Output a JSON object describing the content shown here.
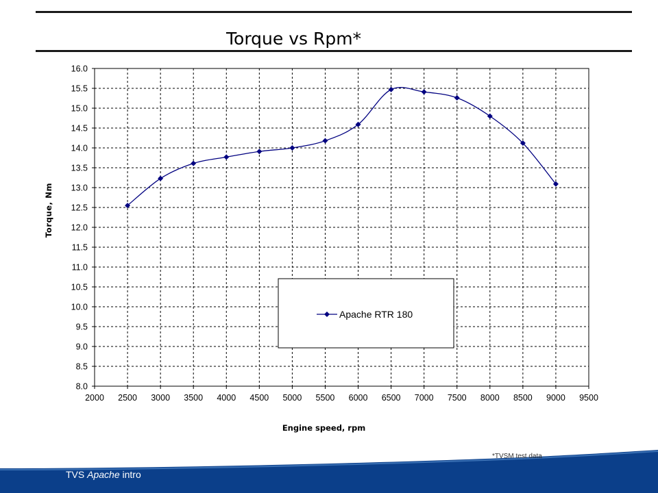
{
  "slide": {
    "title": "Torque vs Rpm*",
    "footnote": "*TVSM test data",
    "footer_brand": "TVS",
    "footer_model": "Apache",
    "footer_suffix": "intro",
    "footer_color": "#0b3f8a"
  },
  "chart_data": {
    "type": "line",
    "title": "",
    "xlabel": "Engine speed, rpm",
    "ylabel": "Torque, Nm",
    "xlim": [
      2000,
      9500
    ],
    "ylim": [
      8.0,
      16.0
    ],
    "xticks": [
      "2000",
      "2500",
      "3000",
      "3500",
      "4000",
      "4500",
      "5000",
      "5500",
      "6000",
      "6500",
      "7000",
      "7500",
      "8000",
      "8500",
      "9000",
      "9500"
    ],
    "yticks": [
      "8.0",
      "8.5",
      "9.0",
      "9.5",
      "10.0",
      "10.5",
      "11.0",
      "11.5",
      "12.0",
      "12.5",
      "13.0",
      "13.5",
      "14.0",
      "14.5",
      "15.0",
      "15.5",
      "16.0"
    ],
    "grid": true,
    "legend_position": "center-right",
    "series": [
      {
        "name": "Apache RTR 180",
        "color": "#000080",
        "marker": "diamond",
        "smooth": true,
        "x": [
          2500,
          3000,
          3500,
          4000,
          4500,
          5000,
          5500,
          6000,
          6500,
          7000,
          7500,
          8000,
          8500,
          9000
        ],
        "y": [
          12.55,
          13.23,
          13.61,
          13.77,
          13.91,
          14.0,
          14.18,
          14.59,
          15.47,
          15.41,
          15.26,
          14.8,
          14.12,
          13.09
        ]
      }
    ]
  }
}
